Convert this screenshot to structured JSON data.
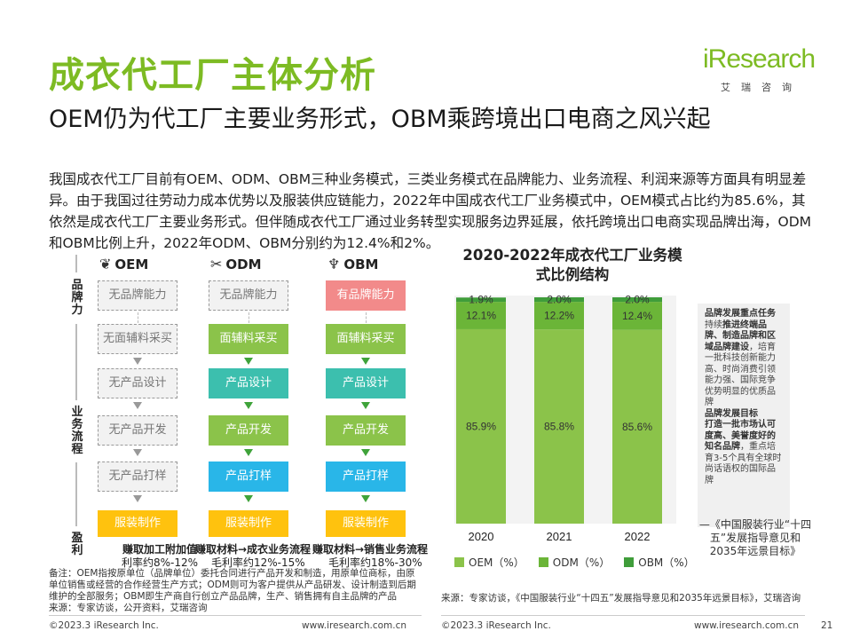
{
  "title": "成衣代工厂主体分析",
  "logo": {
    "main": "iResearch",
    "sub": "艾瑞咨询"
  },
  "subtitle": "OEM仍为代工厂主要业务形式，OBM乘跨境出口电商之风兴起",
  "intro": "我国成衣代工厂目前有OEM、ODM、OBM三种业务模式，三类业务模式在品牌能力、业务流程、利润来源等方面具有明显差异。由于我国过往劳动力成本优势以及服装供应链能力，2022年中国成衣代工厂业务模式中，OEM模式占比约为85.6%，其依然是成衣代工厂主要业务形式。但伴随成衣代工厂通过业务转型实现服务边界延展，依托跨境出口电商实现品牌出海，ODM和OBM比例上升，2022年ODM、OBM分别约为12.4%和2%。",
  "flow": {
    "side_labels": {
      "brand": "品牌力",
      "process": "业务流程",
      "profit": "盈利"
    },
    "columns": [
      {
        "name": "OEM",
        "icon": "spool-icon",
        "brand": "无品牌能力",
        "steps": [
          "无面辅料采买",
          "无产品设计",
          "无产品开发",
          "无产品打样"
        ],
        "make": "服装制作",
        "profit_label": "赚取加工附加值",
        "profit_rate": "利率约8%-12%"
      },
      {
        "name": "ODM",
        "icon": "tools-icon",
        "brand": "无品牌能力",
        "steps": [
          "面辅料采买",
          "产品设计",
          "产品开发",
          "产品打样"
        ],
        "make": "服装制作",
        "profit_label": "赚取材料→成衣业务流程",
        "profit_rate": "毛利率约12%-15%"
      },
      {
        "name": "OBM",
        "icon": "shirt-icon",
        "brand": "有品牌能力",
        "steps": [
          "面辅料采买",
          "产品设计",
          "产品开发",
          "产品打样"
        ],
        "make": "服装制作",
        "profit_label": "赚取材料→销售业务流程",
        "profit_rate": "毛利率约18%-30%"
      }
    ]
  },
  "note": "备注：OEM指按原单位（品牌单位）委托合同进行产品开发和制造，用原单位商标，由原单位销售或经营的合作经营生产方式；ODM则可为客户提供从产品研发、设计制造到后期维护的全部服务；OBM即生产商自行创立产品品牌，生产、销售拥有自主品牌的产品\n来源：专家访谈，公开资料，艾瑞咨询",
  "chart_title": "2020-2022年成衣代工厂业务模式比例结构",
  "chart_data": {
    "type": "bar",
    "stacked": true,
    "categories": [
      "2020",
      "2021",
      "2022"
    ],
    "series": [
      {
        "name": "OEM（%）",
        "values": [
          85.9,
          85.8,
          85.6
        ],
        "labels": [
          "85.9%",
          "85.8%",
          "85.6%"
        ],
        "color": "#8bc34a"
      },
      {
        "name": "ODM（%）",
        "values": [
          12.1,
          12.2,
          12.4
        ],
        "labels": [
          "12.1%",
          "12.2%",
          "12.4%"
        ],
        "color": "#6bb538"
      },
      {
        "name": "OBM（%）",
        "values": [
          1.9,
          2.0,
          2.0
        ],
        "labels": [
          "1.9%",
          "2.0%",
          "2.0%"
        ],
        "color": "#3f9d3a"
      }
    ],
    "ylim": [
      0,
      100
    ],
    "legend_position": "bottom"
  },
  "panel": {
    "h1": "品牌发展重点任务",
    "t1a": "持续",
    "b1": "推进终端品牌、制造品牌和区域品牌建设",
    "t1b": "，培育一批科技创新能力高、时尚消费引领能力强、国际竞争优势明显的优质品牌",
    "h2": "品牌发展目标",
    "b2": "打造一批市场认可度高、美誉度好的知名品牌",
    "t2": "，重点培育3-5个具有全球时尚话语权的国际品牌"
  },
  "quote": "—《中国服装行业“十四五”发展指导意见和2035年远景目标》",
  "source": "来源：专家访谈，《中国服装行业“十四五”发展指导意见和2035年远景目标》，艾瑞咨询",
  "footer": {
    "copyright": "©2023.3 iResearch Inc.",
    "url": "www.iresearch.com.cn",
    "page": "21"
  },
  "colors": {
    "brand_green": "#7dbb23",
    "dark_green": "#3fa33a"
  }
}
